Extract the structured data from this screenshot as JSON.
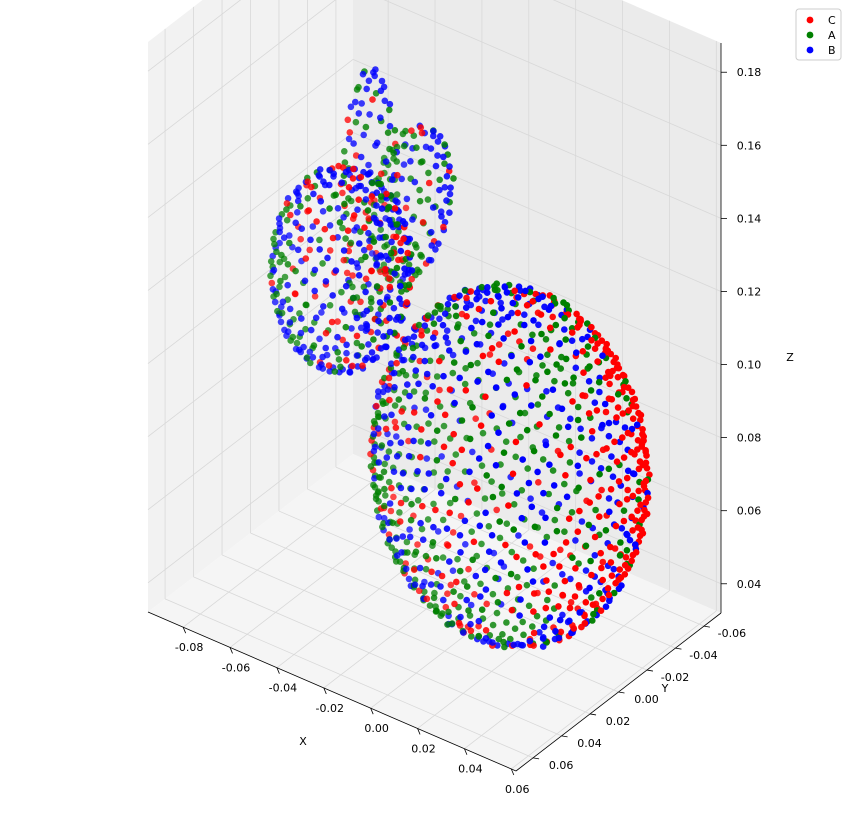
{
  "chart_data": {
    "type": "scatter",
    "projection": "3d",
    "title": "",
    "xlabel": "X",
    "ylabel": "Y",
    "zlabel": "Z",
    "xlim": [
      -0.095,
      0.062
    ],
    "ylim": [
      -0.072,
      0.072
    ],
    "zlim": [
      0.032,
      0.188
    ],
    "xticks": [
      "-0.08",
      "-0.06",
      "-0.04",
      "-0.02",
      "0.00",
      "0.02",
      "0.04",
      "0.06"
    ],
    "yticks": [
      "-0.06",
      "-0.04",
      "-0.02",
      "0.00",
      "0.02",
      "0.04",
      "0.06"
    ],
    "zticks": [
      "0.04",
      "0.06",
      "0.08",
      "0.10",
      "0.12",
      "0.14",
      "0.16",
      "0.18"
    ],
    "grid": true,
    "legend_position": "top-right",
    "series": [
      {
        "name": "C",
        "color": "#ff0000"
      },
      {
        "name": "A",
        "color": "#008000"
      },
      {
        "name": "B",
        "color": "#0000ff"
      }
    ]
  }
}
